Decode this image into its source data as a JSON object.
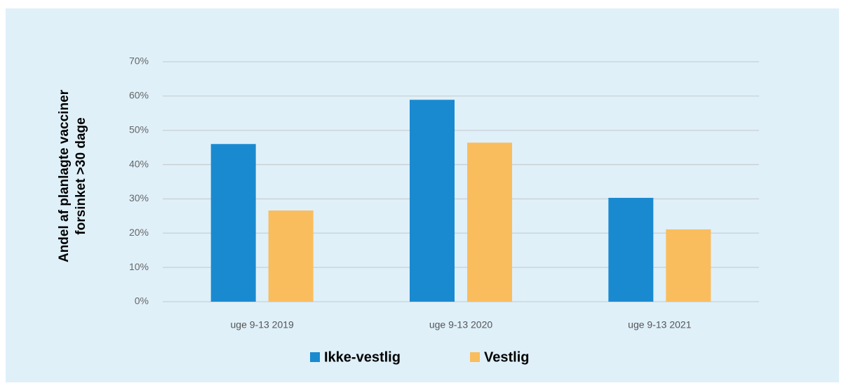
{
  "chart_data": {
    "type": "bar",
    "ylabel": [
      "Andel af planlagte vacciner",
      "forsinket >30 dage"
    ],
    "categories": [
      "uge 9-13 2019",
      "uge 9-13 2020",
      "uge 9-13 2021"
    ],
    "series": [
      {
        "name": "Ikke-vestlig",
        "color": "#1a8ad0",
        "values": [
          46,
          58.9,
          30.3
        ]
      },
      {
        "name": "Vestlig",
        "color": "#f9bd5e",
        "values": [
          26.6,
          46.4,
          21.1
        ]
      }
    ],
    "ylim": [
      0,
      70
    ],
    "yticks": [
      {
        "value": 0,
        "label": "0%"
      },
      {
        "value": 10,
        "label": "10%"
      },
      {
        "value": 20,
        "label": "20%"
      },
      {
        "value": 30,
        "label": "30%"
      },
      {
        "value": 40,
        "label": "40%"
      },
      {
        "value": 50,
        "label": "50%"
      },
      {
        "value": 60,
        "label": "60%"
      },
      {
        "value": 70,
        "label": "70%"
      }
    ],
    "grid": true,
    "legend": "bottom"
  }
}
